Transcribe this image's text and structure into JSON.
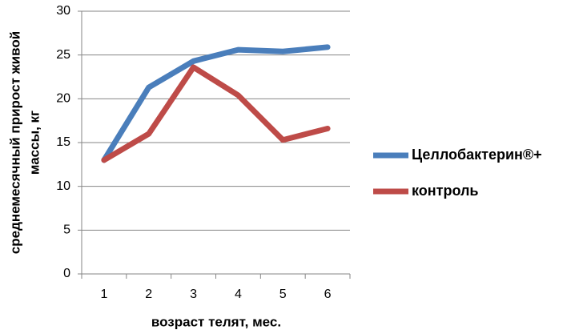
{
  "chart_data": {
    "type": "line",
    "categories": [
      "1",
      "2",
      "3",
      "4",
      "5",
      "6"
    ],
    "series": [
      {
        "name": "Целлобактерин®+",
        "color": "#4a7ebb",
        "values": [
          13,
          21.3,
          24.3,
          25.6,
          25.4,
          25.9
        ]
      },
      {
        "name": "контроль",
        "color": "#be4b48",
        "values": [
          13,
          16,
          23.6,
          20.4,
          15.3,
          16.6
        ]
      }
    ],
    "ylim": [
      0,
      30
    ],
    "yticks": [
      0,
      5,
      10,
      15,
      20,
      25,
      30
    ],
    "grid": true,
    "x_label": "возраст телят, мес.",
    "y_label": [
      "среднемесячный прирост живой",
      "массы, кг"
    ],
    "legend": "right"
  }
}
